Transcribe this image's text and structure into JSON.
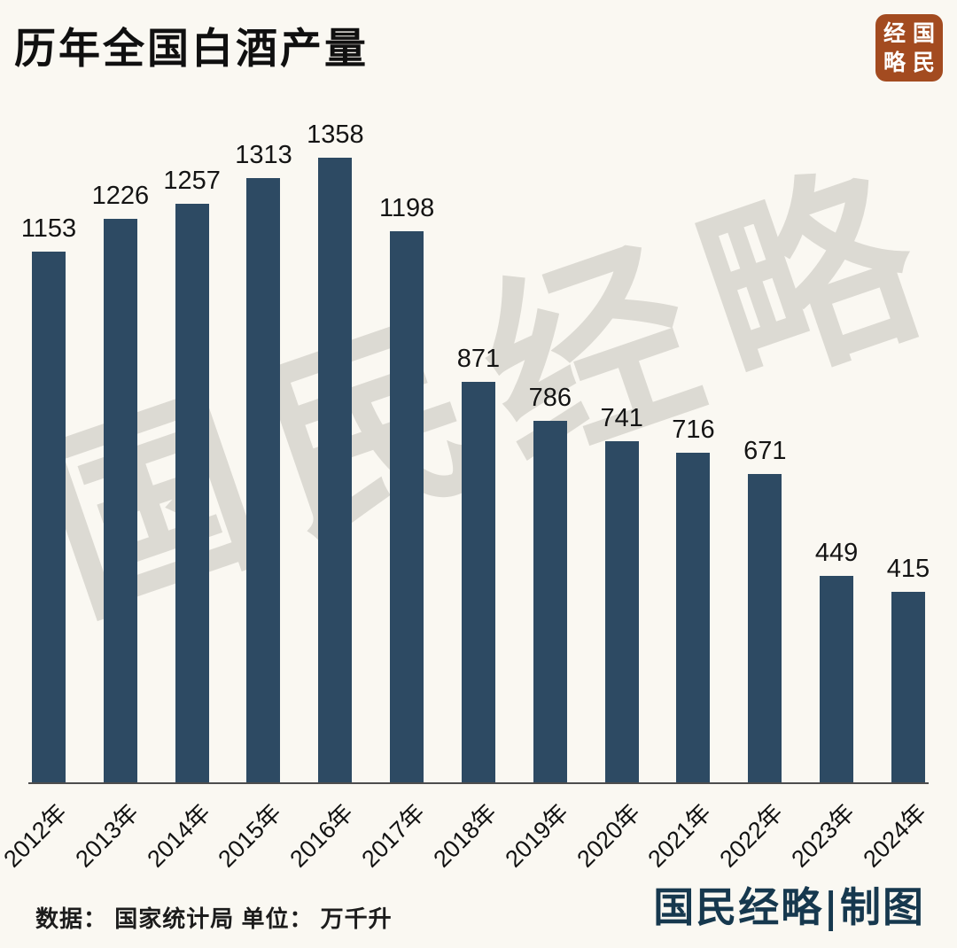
{
  "header": {
    "title": "历年全国白酒产量",
    "logo": {
      "chars": [
        "经",
        "国",
        "略",
        "民"
      ],
      "bg_color": "#a34b20"
    }
  },
  "watermark": {
    "text": "国民经略"
  },
  "chart_data": {
    "type": "bar",
    "title": "历年全国白酒产量",
    "categories": [
      "2012年",
      "2013年",
      "2014年",
      "2015年",
      "2016年",
      "2017年",
      "2018年",
      "2019年",
      "2020年",
      "2021年",
      "2022年",
      "2023年",
      "2024年"
    ],
    "values": [
      1153,
      1226,
      1257,
      1313,
      1358,
      1198,
      871,
      786,
      741,
      716,
      671,
      449,
      415
    ],
    "xlabel": "",
    "ylabel": "",
    "ylim": [
      0,
      1400
    ],
    "grid": false,
    "legend": false,
    "value_labels": true,
    "bar_color": "#2d4a63",
    "background_color": "#faf8f2"
  },
  "footer": {
    "source": "数据： 国家统计局 单位： 万千升",
    "credit": "国民经略|制图"
  }
}
